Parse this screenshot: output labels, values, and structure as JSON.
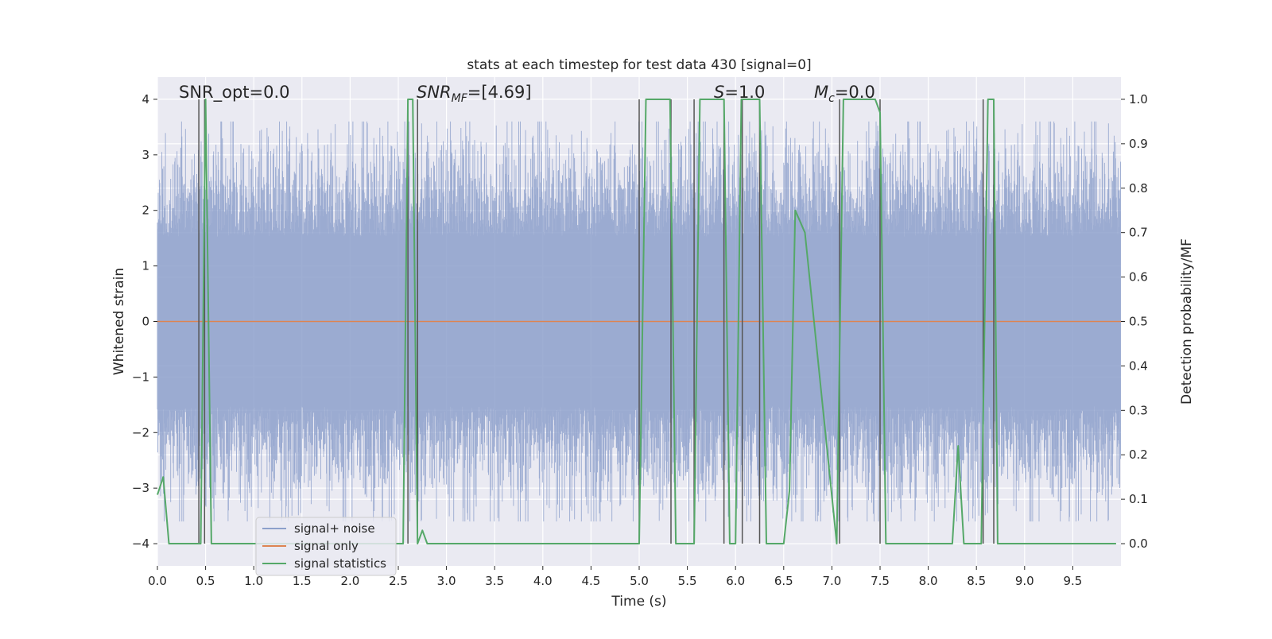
{
  "chart_data": {
    "type": "line",
    "title": "stats at each timestep for test data 430 [signal=0]",
    "xlabel": "Time (s)",
    "ylabel": "Whitened strain",
    "y2label": "Detection probability/MF",
    "xlim": [
      0,
      10
    ],
    "ylim": [
      -4.4,
      4.4
    ],
    "y2lim": [
      -0.05,
      1.05
    ],
    "xticks": [
      "0.0",
      "0.5",
      "1.0",
      "1.5",
      "2.0",
      "2.5",
      "3.0",
      "3.5",
      "4.0",
      "4.5",
      "5.0",
      "5.5",
      "6.0",
      "6.5",
      "7.0",
      "7.5",
      "8.0",
      "8.5",
      "9.0",
      "9.5"
    ],
    "yticks": [
      "4",
      "3",
      "2",
      "1",
      "0",
      "−1",
      "−2",
      "−3",
      "−4"
    ],
    "y2ticks": [
      "1.0",
      "0.9",
      "0.8",
      "0.7",
      "0.6",
      "0.5",
      "0.4",
      "0.3",
      "0.2",
      "0.1",
      "0.0"
    ],
    "grid": true,
    "legend_position": "lower-left",
    "annotations": {
      "snr_opt": "SNR_opt=0.0",
      "snr_mf_prefix": "SNR",
      "snr_mf_sub": "MF",
      "snr_mf_value": "=[4.69]",
      "s_label": "S",
      "s_value": "=1.0",
      "mc_label": "M",
      "mc_sub": "c",
      "mc_value": "=0.0"
    },
    "series": [
      {
        "name": "signal+ noise",
        "color": "#8da0cb",
        "axis": "left",
        "description_level": "noise band roughly ±1.7 with peaks to ±3.5",
        "noise_envelope": 1.7
      },
      {
        "name": "signal only",
        "color": "#dd8452",
        "axis": "left",
        "x": [
          0,
          10
        ],
        "y": [
          0,
          0
        ]
      },
      {
        "name": "signal statistics",
        "color": "#55a868",
        "axis": "right",
        "x": [
          0.0,
          0.06,
          0.12,
          0.42,
          0.45,
          0.5,
          0.56,
          0.6,
          2.55,
          2.6,
          2.65,
          2.7,
          2.75,
          2.8,
          5.0,
          5.07,
          5.32,
          5.38,
          5.57,
          5.63,
          5.88,
          5.94,
          6.0,
          6.06,
          6.13,
          6.25,
          6.32,
          6.5,
          6.56,
          6.62,
          6.72,
          7.05,
          7.12,
          7.45,
          7.5,
          7.56,
          8.25,
          8.31,
          8.37,
          8.55,
          8.62,
          8.68,
          8.72,
          9.95
        ],
        "y": [
          0.11,
          0.15,
          0.0,
          0.0,
          0.0,
          1.0,
          0.0,
          0.0,
          0.0,
          1.0,
          1.0,
          0.0,
          0.03,
          0.0,
          0.0,
          1.0,
          1.0,
          0.0,
          0.0,
          1.0,
          1.0,
          0.0,
          0.0,
          1.0,
          1.0,
          1.0,
          0.0,
          0.0,
          0.12,
          0.75,
          0.7,
          0.0,
          1.0,
          1.0,
          0.97,
          0.0,
          0.0,
          0.22,
          0.0,
          0.0,
          1.0,
          1.0,
          0.0,
          0.0
        ]
      }
    ],
    "vertical_lines": {
      "color": "#555555",
      "x": [
        0.43,
        0.49,
        2.6,
        2.7,
        5.0,
        5.33,
        5.57,
        5.88,
        6.07,
        6.25,
        7.08,
        7.5,
        8.57,
        8.68
      ],
      "ymin": -4,
      "ymax": 4
    }
  }
}
